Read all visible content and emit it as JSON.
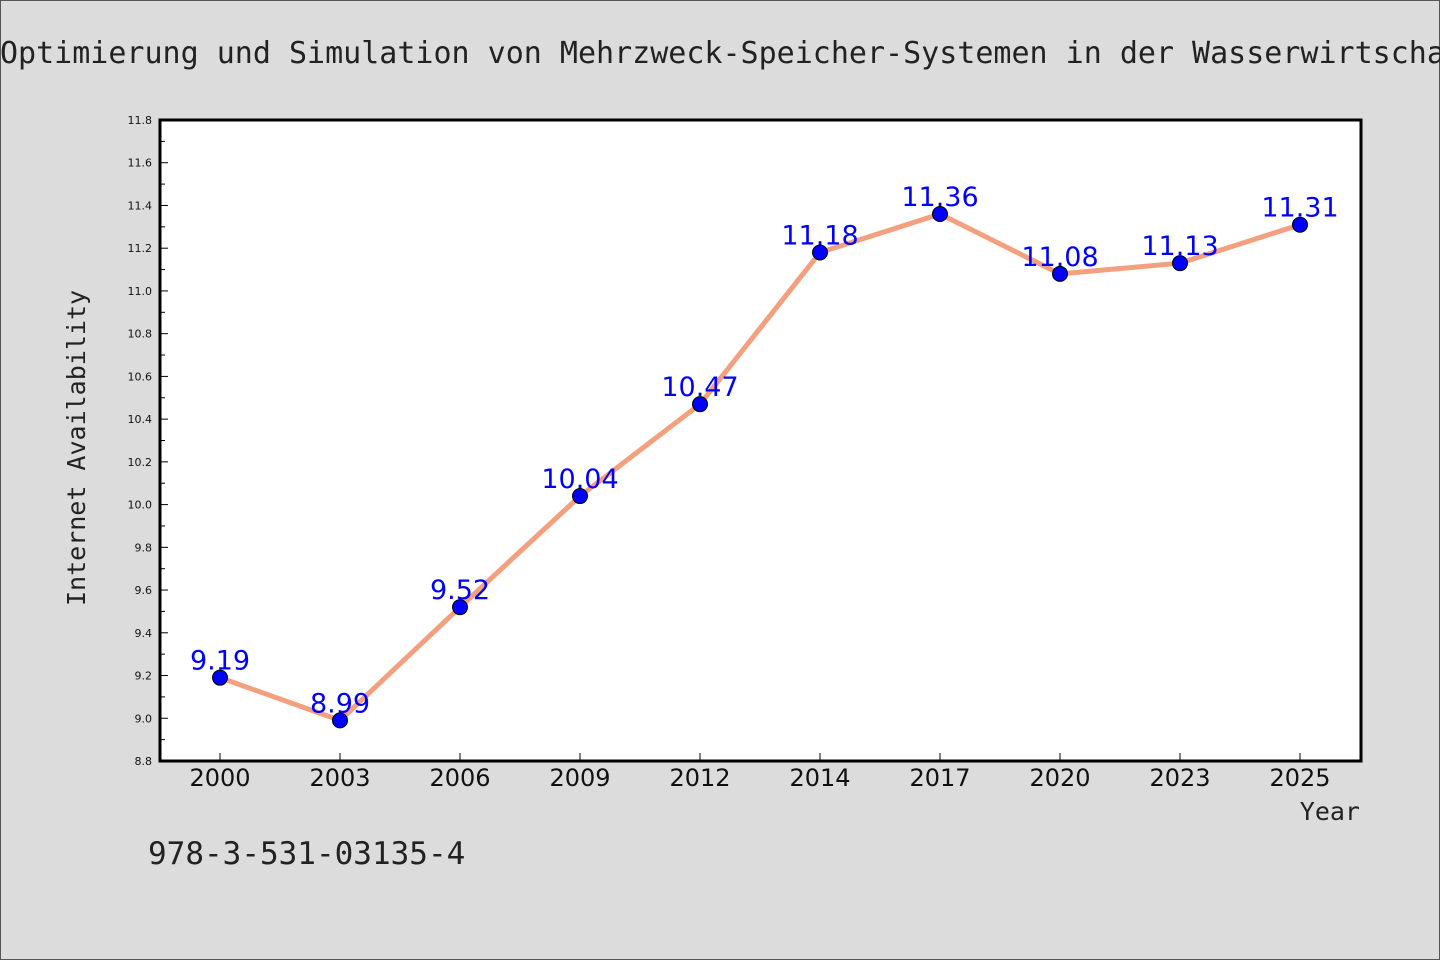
{
  "header": {
    "title": "Optimierung und Simulation von Mehrzweck-Speicher-Systemen in der Wasserwirtschaft"
  },
  "footer": {
    "isbn": "978-3-531-03135-4"
  },
  "colors": {
    "background": "#dcdcdc",
    "plot_background": "#ffffff",
    "line": "#f4a07f",
    "marker": "#0000ff",
    "data_label": "#0000ff"
  },
  "chart_data": {
    "type": "line",
    "title": "Optimierung und Simulation von Mehrzweck-Speicher-Systemen in der Wasserwirtschaft",
    "xlabel": "Year",
    "ylabel": "Internet Availability",
    "categories": [
      "2000",
      "2003",
      "2006",
      "2009",
      "2012",
      "2014",
      "2017",
      "2020",
      "2023",
      "2025"
    ],
    "series": [
      {
        "values": [
          9.19,
          8.99,
          9.52,
          10.04,
          10.47,
          11.18,
          11.36,
          11.08,
          11.13,
          11.31
        ],
        "data_labels": [
          "9.19",
          "8.99",
          "9.52",
          "10.04",
          "10.47",
          "11.18",
          "11.36",
          "11.08",
          "11.13",
          "11.31"
        ]
      }
    ],
    "ylim": [
      8.8,
      11.8
    ],
    "yticks": [
      "8.8",
      "9.0",
      "9.2",
      "9.4",
      "9.6",
      "9.8",
      "10.0",
      "10.2",
      "10.4",
      "10.6",
      "10.8",
      "11.0",
      "11.2",
      "11.4",
      "11.6",
      "11.8"
    ],
    "grid": false,
    "legend": "none"
  }
}
